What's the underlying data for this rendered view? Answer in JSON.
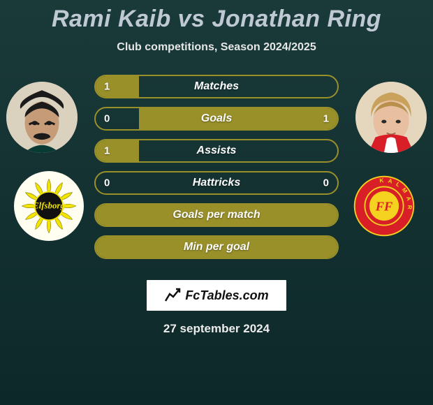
{
  "title": "Rami Kaib vs Jonathan Ring",
  "subtitle": "Club competitions, Season 2024/2025",
  "date": "27 september 2024",
  "branding_text": "FcTables.com",
  "colors": {
    "bar_border": "#99902a",
    "bar_fill": "#99902a",
    "background_from": "#1a3a3a",
    "background_to": "#0d2828",
    "title_color": "#bfc9d4"
  },
  "player_left": {
    "name": "Rami Kaib",
    "avatar_bg": "#d9d0c0"
  },
  "player_right": {
    "name": "Jonathan Ring",
    "avatar_bg": "#e9dcc6"
  },
  "club_left": {
    "name": "Elfsborg",
    "primary": "#f2e300",
    "secondary": "#111111"
  },
  "club_right": {
    "name": "Kalmar FF",
    "primary": "#d81e26",
    "secondary": "#f4d21f"
  },
  "bars": [
    {
      "label": "Matches",
      "left_val": "1",
      "right_val": "",
      "left_pct": 18,
      "right_pct": 0
    },
    {
      "label": "Goals",
      "left_val": "0",
      "right_val": "1",
      "left_pct": 0,
      "right_pct": 82
    },
    {
      "label": "Assists",
      "left_val": "1",
      "right_val": "",
      "left_pct": 18,
      "right_pct": 0
    },
    {
      "label": "Hattricks",
      "left_val": "0",
      "right_val": "0",
      "left_pct": 0,
      "right_pct": 0
    },
    {
      "label": "Goals per match",
      "left_val": "",
      "right_val": "",
      "left_pct": 100,
      "right_pct": 0
    },
    {
      "label": "Min per goal",
      "left_val": "",
      "right_val": "",
      "left_pct": 100,
      "right_pct": 0
    }
  ]
}
